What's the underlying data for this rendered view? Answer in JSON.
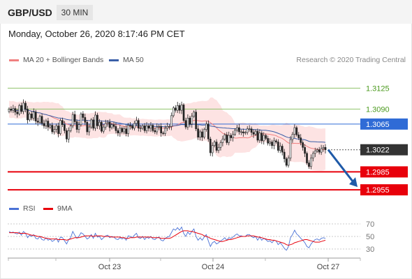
{
  "header": {
    "symbol": "GBP/USD",
    "timeframe": "30 MIN",
    "datetime": "Monday, October 26, 2020 8:17:46 PM CET"
  },
  "legend": {
    "ma20_label": "MA 20 + Bollinger Bands",
    "ma50_label": "MA 50",
    "rsi_label": "RSI",
    "rsi_ma_label": "9MA",
    "copyright": "Research © 2020 Trading Central"
  },
  "colors": {
    "ma20": "#f08080",
    "ma50": "#3a5fa8",
    "bollinger": "#fde0e0",
    "resistance": "#8fc26a",
    "pivot": "#2f6bd6",
    "support": "#e8000b",
    "last_price": "#333333",
    "rsi": "#4a72d6",
    "rsi_ma": "#e8000b",
    "arrow": "#1f5aa8"
  },
  "chart_data": {
    "type": "candlestick",
    "x_tick_labels": [
      "Oct 23",
      "Oct 24",
      "Oct 27"
    ],
    "price_range": [
      1.294,
      1.315
    ],
    "levels": [
      {
        "name": "resistance-2",
        "value": 1.3125,
        "label": "1.3125",
        "kind": "resistance"
      },
      {
        "name": "resistance-1",
        "value": 1.309,
        "label": "1.3090",
        "kind": "resistance"
      },
      {
        "name": "pivot",
        "value": 1.3065,
        "label": "1.3065",
        "kind": "pivot"
      },
      {
        "name": "last-price",
        "value": 1.3022,
        "label": "1.3022",
        "kind": "last"
      },
      {
        "name": "support-1",
        "value": 1.2985,
        "label": "1.2985",
        "kind": "support"
      },
      {
        "name": "support-2",
        "value": 1.2955,
        "label": "1.2955",
        "kind": "support"
      }
    ],
    "close_path": [
      1.309,
      1.3088,
      1.3091,
      1.3085,
      1.3082,
      1.3096,
      1.3086,
      1.31,
      1.309,
      1.3072,
      1.3082,
      1.3075,
      1.3085,
      1.307,
      1.3068,
      1.3078,
      1.3066,
      1.3062,
      1.307,
      1.306,
      1.3063,
      1.3052,
      1.3056,
      1.3062,
      1.3049,
      1.3071,
      1.3064,
      1.3054,
      1.304,
      1.3054,
      1.3062,
      1.3081,
      1.3069,
      1.3056,
      1.3064,
      1.3082,
      1.3076,
      1.3068,
      1.3052,
      1.306,
      1.3072,
      1.3058,
      1.308,
      1.3062,
      1.3068,
      1.3053,
      1.306,
      1.3066,
      1.3068,
      1.3059,
      1.3064,
      1.3061,
      1.3054,
      1.305,
      1.3058,
      1.3052,
      1.3057,
      1.3049,
      1.3063,
      1.3062,
      1.3058,
      1.3066,
      1.3071,
      1.3058,
      1.3058,
      1.3062,
      1.3054,
      1.3062,
      1.3058,
      1.3063,
      1.3054,
      1.3052,
      1.306,
      1.3061,
      1.305,
      1.3049,
      1.3058,
      1.3061,
      1.3061,
      1.3079,
      1.3092,
      1.3088,
      1.3096,
      1.3088,
      1.3097,
      1.3071,
      1.306,
      1.3075,
      1.3065,
      1.3078,
      1.3085,
      1.3057,
      1.3043,
      1.3052,
      1.3043,
      1.3056,
      1.3065,
      1.304,
      1.3017,
      1.3029,
      1.3035,
      1.3021,
      1.3026,
      1.3034,
      1.304,
      1.3047,
      1.3034,
      1.3046,
      1.3042,
      1.3048,
      1.3055,
      1.3059,
      1.3052,
      1.3052,
      1.305,
      1.3051,
      1.3057,
      1.3057,
      1.3051,
      1.3048,
      1.3053,
      1.3038,
      1.305,
      1.3037,
      1.3046,
      1.3041,
      1.3033,
      1.3035,
      1.3029,
      1.3037,
      1.3035,
      1.3021,
      1.3028,
      1.3018,
      1.3007,
      1.2996,
      1.3008,
      1.3039,
      1.3048,
      1.3059,
      1.3047,
      1.3042,
      1.3034,
      1.3026,
      1.3016,
      1.3,
      1.2994,
      1.3008,
      1.3016,
      1.302,
      1.3022,
      1.3018,
      1.3024,
      1.3026,
      1.3022
    ],
    "forecast": {
      "from": 1.3022,
      "to": 1.2955
    },
    "rsi": {
      "ticks": [
        30,
        50,
        70
      ],
      "range": [
        20,
        80
      ],
      "values": [
        58,
        56,
        57,
        55,
        54,
        57,
        52,
        58,
        55,
        48,
        52,
        50,
        53,
        47,
        46,
        50,
        45,
        44,
        48,
        44,
        46,
        42,
        44,
        47,
        41,
        49,
        48,
        43,
        38,
        45,
        48,
        58,
        52,
        47,
        50,
        56,
        54,
        50,
        46,
        48,
        53,
        47,
        55,
        49,
        50,
        45,
        48,
        51,
        52,
        48,
        50,
        49,
        46,
        45,
        48,
        46,
        48,
        44,
        51,
        50,
        48,
        52,
        55,
        48,
        47,
        50,
        45,
        49,
        47,
        50,
        46,
        45,
        48,
        49,
        44,
        43,
        47,
        49,
        50,
        56,
        62,
        60,
        64,
        60,
        65,
        55,
        50,
        57,
        53,
        58,
        62,
        50,
        44,
        48,
        44,
        49,
        53,
        43,
        34,
        40,
        42,
        38,
        40,
        43,
        45,
        48,
        44,
        48,
        47,
        49,
        52,
        54,
        51,
        51,
        50,
        50,
        53,
        53,
        50,
        48,
        50,
        44,
        49,
        44,
        47,
        45,
        42,
        43,
        40,
        44,
        43,
        37,
        40,
        36,
        31,
        28,
        34,
        48,
        53,
        60,
        54,
        51,
        47,
        44,
        40,
        34,
        32,
        38,
        42,
        45,
        46,
        44,
        47,
        48,
        47
      ],
      "ma_values": [
        56,
        56,
        56,
        56,
        56,
        55,
        55,
        55,
        55,
        54,
        53,
        52,
        52,
        51,
        50,
        50,
        49,
        48,
        47,
        47,
        46,
        46,
        46,
        46,
        45,
        45,
        45,
        45,
        44,
        45,
        46,
        47,
        48,
        48,
        48,
        49,
        50,
        51,
        51,
        51,
        51,
        50,
        51,
        51,
        51,
        51,
        50,
        50,
        50,
        50,
        49,
        49,
        49,
        49,
        49,
        48,
        48,
        47,
        47,
        48,
        48,
        48,
        49,
        49,
        49,
        49,
        49,
        49,
        49,
        49,
        48,
        48,
        48,
        48,
        47,
        47,
        47,
        47,
        47,
        48,
        50,
        52,
        54,
        56,
        58,
        59,
        59,
        59,
        58,
        58,
        57,
        56,
        55,
        54,
        53,
        51,
        50,
        49,
        47,
        46,
        45,
        44,
        43,
        42,
        42,
        43,
        44,
        45,
        45,
        46,
        47,
        48,
        49,
        50,
        50,
        50,
        51,
        51,
        51,
        51,
        50,
        49,
        49,
        48,
        47,
        46,
        45,
        45,
        44,
        44,
        43,
        42,
        41,
        40,
        39,
        37,
        36,
        37,
        38,
        40,
        41,
        42,
        43,
        44,
        45,
        45,
        44,
        43,
        42,
        41,
        41,
        41,
        42,
        43,
        44
      ]
    }
  }
}
